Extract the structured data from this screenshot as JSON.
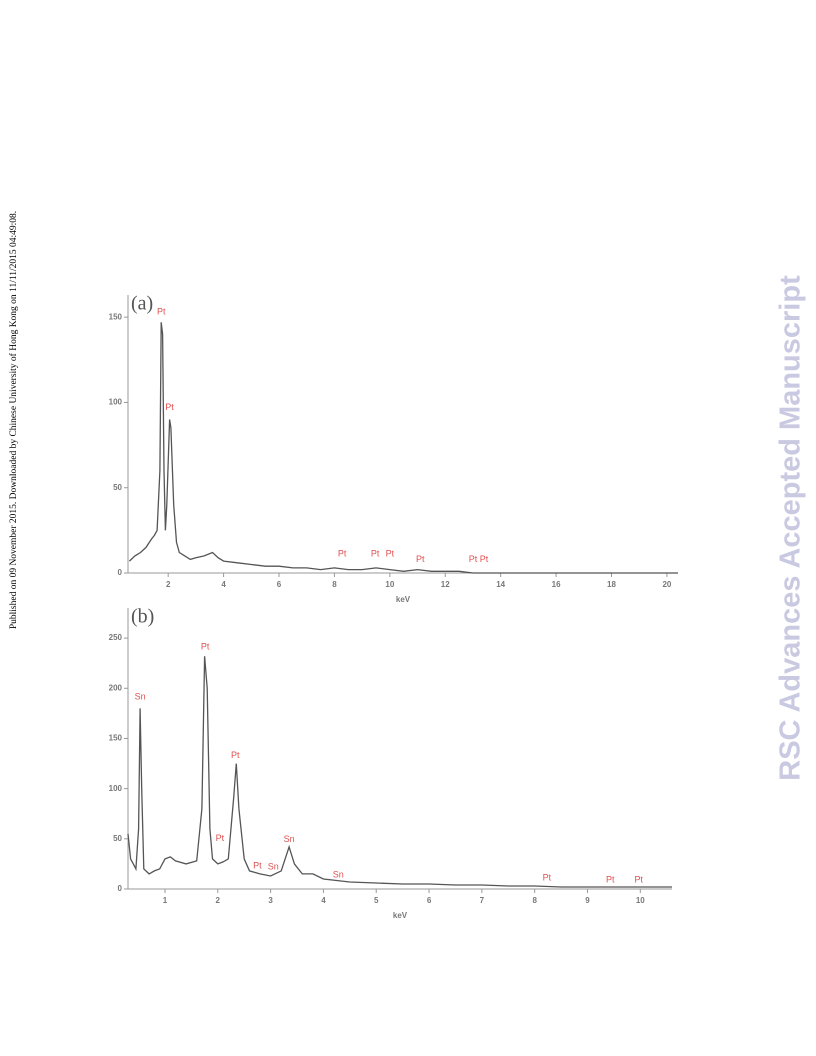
{
  "sidebar": "Published on 09 November 2015. Downloaded by Chinese University of Hong Kong on 11/11/2015 04:49:08.",
  "watermark": "RSC Advances Accepted Manuscript",
  "chart_data": [
    {
      "type": "line",
      "panel": "(a)",
      "x_label": "keV",
      "color": "#555555",
      "xlim": [
        0.55,
        20.4
      ],
      "ylim": [
        0,
        163
      ],
      "xticks": [
        2,
        4,
        6,
        8,
        10,
        12,
        14,
        16,
        18,
        20
      ],
      "yticks": [
        0,
        50,
        100,
        150
      ],
      "x": [
        0.6,
        0.8,
        1.0,
        1.2,
        1.4,
        1.5,
        1.6,
        1.7,
        1.75,
        1.8,
        1.85,
        1.9,
        1.95,
        2.05,
        2.1,
        2.2,
        2.3,
        2.4,
        2.6,
        2.8,
        3.0,
        3.3,
        3.6,
        3.8,
        4.0,
        4.5,
        5.0,
        5.5,
        6.0,
        6.5,
        7.0,
        7.5,
        8.0,
        8.5,
        9.0,
        9.5,
        10.0,
        10.5,
        11.0,
        11.5,
        12.0,
        12.5,
        13.0,
        14,
        16,
        18,
        20,
        20.4
      ],
      "values": [
        7,
        10,
        12,
        15,
        20,
        22,
        25,
        60,
        147,
        140,
        60,
        25,
        40,
        90,
        85,
        40,
        18,
        12,
        10,
        8,
        9,
        10,
        12,
        9,
        7,
        6,
        5,
        4,
        4,
        3,
        3,
        2,
        3,
        2,
        2,
        3,
        2,
        1,
        2,
        1,
        1,
        1,
        0,
        0,
        0,
        0,
        0,
        0
      ],
      "annotations": [
        {
          "text": "Pt",
          "x": 1.75,
          "y": 150
        },
        {
          "text": "Pt",
          "x": 2.05,
          "y": 94
        },
        {
          "text": "Pt",
          "x": 8.28,
          "y": 8
        },
        {
          "text": "Pt",
          "x": 9.47,
          "y": 8
        },
        {
          "text": "Pt",
          "x": 10.0,
          "y": 8
        },
        {
          "text": "Pt",
          "x": 11.1,
          "y": 5
        },
        {
          "text": "Pt",
          "x": 13.0,
          "y": 5
        },
        {
          "text": "Pt",
          "x": 13.4,
          "y": 5
        }
      ]
    },
    {
      "type": "line",
      "panel": "(b)",
      "x_label": "keV",
      "color": "#555555",
      "xlim": [
        0.3,
        10.6
      ],
      "ylim": [
        0,
        280
      ],
      "xticks": [
        1,
        2,
        3,
        4,
        5,
        6,
        7,
        8,
        9,
        10
      ],
      "yticks": [
        0,
        50,
        100,
        150,
        200,
        250
      ],
      "x": [
        0.3,
        0.35,
        0.4,
        0.45,
        0.5,
        0.53,
        0.56,
        0.6,
        0.7,
        0.8,
        0.9,
        1.0,
        1.1,
        1.2,
        1.4,
        1.6,
        1.7,
        1.75,
        1.8,
        1.85,
        1.9,
        2.0,
        2.1,
        2.2,
        2.3,
        2.35,
        2.4,
        2.5,
        2.6,
        2.8,
        3.0,
        3.2,
        3.35,
        3.45,
        3.6,
        3.8,
        4.0,
        4.5,
        5.0,
        5.5,
        6.0,
        6.5,
        7.0,
        7.5,
        8.0,
        8.5,
        9.0,
        9.5,
        10.0,
        10.6
      ],
      "values": [
        55,
        30,
        25,
        20,
        60,
        180,
        100,
        20,
        15,
        18,
        20,
        30,
        32,
        28,
        25,
        28,
        80,
        232,
        200,
        60,
        30,
        25,
        27,
        30,
        90,
        125,
        80,
        30,
        18,
        15,
        13,
        18,
        42,
        25,
        15,
        15,
        10,
        7,
        6,
        5,
        5,
        4,
        4,
        3,
        3,
        2,
        2,
        2,
        2,
        2
      ],
      "annotations": [
        {
          "text": "Sn",
          "x": 0.53,
          "y": 186
        },
        {
          "text": "Pt",
          "x": 1.76,
          "y": 236
        },
        {
          "text": "Pt",
          "x": 2.04,
          "y": 45
        },
        {
          "text": "Pt",
          "x": 2.33,
          "y": 128
        },
        {
          "text": "Pt",
          "x": 2.75,
          "y": 18
        },
        {
          "text": "Sn",
          "x": 3.05,
          "y": 17
        },
        {
          "text": "Sn",
          "x": 3.35,
          "y": 44
        },
        {
          "text": "Sn",
          "x": 4.28,
          "y": 9
        },
        {
          "text": "Pt",
          "x": 8.23,
          "y": 6
        },
        {
          "text": "Pt",
          "x": 9.43,
          "y": 4
        },
        {
          "text": "Pt",
          "x": 9.97,
          "y": 4
        }
      ]
    }
  ]
}
